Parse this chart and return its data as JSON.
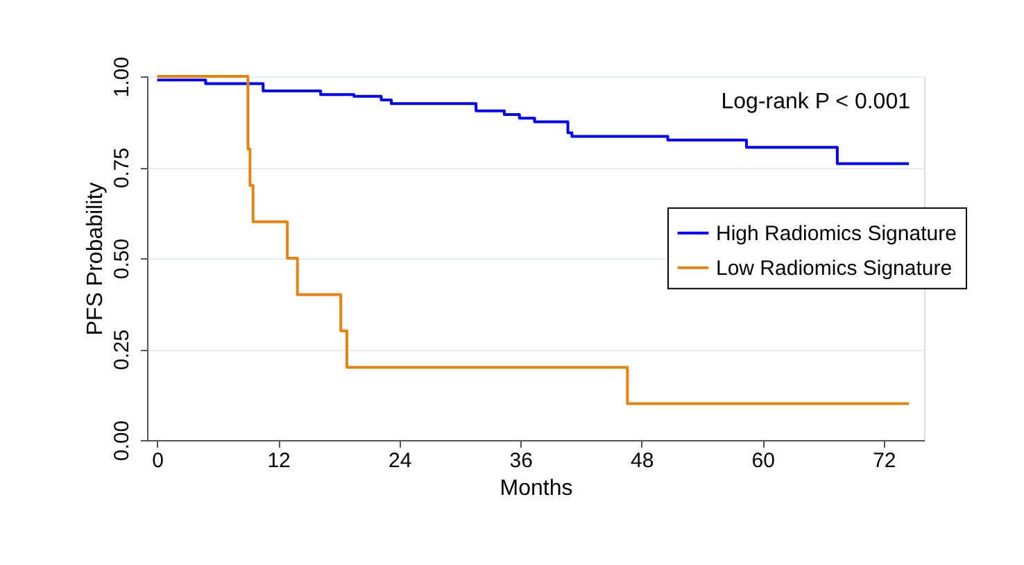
{
  "chart_data": {
    "type": "step",
    "xlabel": "Months",
    "ylabel": "PFS Probability",
    "annotations": [
      "Log-rank P < 0.001"
    ],
    "xlim": [
      -1,
      76
    ],
    "xticks": [
      0,
      12,
      24,
      36,
      48,
      60,
      72
    ],
    "ylim": [
      0,
      1
    ],
    "yticks": [
      {
        "value": 0,
        "label": "0.00"
      },
      {
        "value": 0.25,
        "label": "0.25"
      },
      {
        "value": 0.5,
        "label": "0.50"
      },
      {
        "value": 0.75,
        "label": "0.75"
      },
      {
        "value": 1,
        "label": "1.00"
      }
    ],
    "grid": "y",
    "legend": "right",
    "line_style": "solid",
    "marker": "none",
    "series": [
      {
        "name": "High Radiomics Signature",
        "color": "#0000ff",
        "x": [
          0,
          4.8,
          10.5,
          16.2,
          19.5,
          22.2,
          23.2,
          31.6,
          34.4,
          35.9,
          37.4,
          40.7,
          41.1,
          50.6,
          58.4,
          67.4,
          74.5
        ],
        "values": [
          0.99,
          0.98,
          0.96,
          0.95,
          0.945,
          0.935,
          0.925,
          0.905,
          0.895,
          0.885,
          0.875,
          0.845,
          0.835,
          0.825,
          0.805,
          0.76,
          0.76
        ]
      },
      {
        "name": "Low Radiomics Signature",
        "color": "#e8820c",
        "x": [
          0,
          9.0,
          9.2,
          9.5,
          12.9,
          13.9,
          18.2,
          18.8,
          46.6,
          74.5
        ],
        "values": [
          1.0,
          0.8,
          0.7,
          0.6,
          0.5,
          0.4,
          0.3,
          0.2,
          0.1,
          0.1
        ]
      }
    ]
  }
}
